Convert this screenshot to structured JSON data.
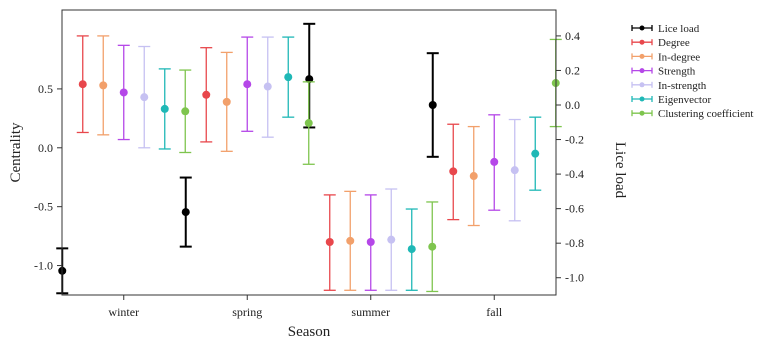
{
  "chart_data": {
    "type": "errorbar",
    "xlabel": "Season",
    "ylabel": "Centrality",
    "y2label": "Lice load",
    "categories": [
      "winter",
      "spring",
      "summer",
      "fall"
    ],
    "ylim": [
      -1.25,
      1.17
    ],
    "y2lim": [
      -1.1,
      0.55
    ],
    "yticks": [
      -1.0,
      -0.5,
      0.0,
      0.5
    ],
    "ytick_labels": [
      "-1.0",
      "-0.5",
      "0.0",
      "0.5"
    ],
    "y2ticks": [
      -1.0,
      -0.8,
      -0.6,
      -0.4,
      -0.2,
      0.0,
      0.2,
      0.4
    ],
    "y2tick_labels": [
      "-1.0",
      "-0.8",
      "-0.6",
      "-0.4",
      "-0.2",
      "0.0",
      "0.2",
      "0.4"
    ],
    "legend_position": "outside-right",
    "series": [
      {
        "name": "Lice load",
        "axis": "right",
        "color": "#000000",
        "mean": [
          -0.96,
          -0.62,
          0.15,
          0.0
        ],
        "lower": [
          -1.09,
          -0.82,
          -0.13,
          -0.3
        ],
        "upper": [
          -0.83,
          -0.42,
          0.47,
          0.3
        ]
      },
      {
        "name": "Degree",
        "axis": "left",
        "color": "#e8474c",
        "mean": [
          0.54,
          0.45,
          -0.8,
          -0.2
        ],
        "lower": [
          0.13,
          0.05,
          -1.21,
          -0.61
        ],
        "upper": [
          0.95,
          0.85,
          -0.4,
          0.2
        ]
      },
      {
        "name": "In-degree",
        "axis": "left",
        "color": "#f2a06b",
        "mean": [
          0.53,
          0.39,
          -0.79,
          -0.24
        ],
        "lower": [
          0.11,
          -0.03,
          -1.21,
          -0.66
        ],
        "upper": [
          0.95,
          0.81,
          -0.37,
          0.18
        ]
      },
      {
        "name": "Strength",
        "axis": "left",
        "color": "#b547e8",
        "mean": [
          0.47,
          0.54,
          -0.8,
          -0.12
        ],
        "lower": [
          0.07,
          0.14,
          -1.21,
          -0.53
        ],
        "upper": [
          0.87,
          0.94,
          -0.4,
          0.28
        ]
      },
      {
        "name": "In-strength",
        "axis": "left",
        "color": "#c6c1f2",
        "mean": [
          0.43,
          0.52,
          -0.78,
          -0.19
        ],
        "lower": [
          0.0,
          0.09,
          -1.21,
          -0.62
        ],
        "upper": [
          0.86,
          0.94,
          -0.35,
          0.24
        ]
      },
      {
        "name": "Eigenvector",
        "axis": "left",
        "color": "#1fb8b6",
        "mean": [
          0.33,
          0.6,
          -0.86,
          -0.05
        ],
        "lower": [
          -0.01,
          0.26,
          -1.21,
          -0.36
        ],
        "upper": [
          0.67,
          0.94,
          -0.52,
          0.26
        ]
      },
      {
        "name": "Clustering coefficient",
        "axis": "left",
        "color": "#7ec54e",
        "mean": [
          0.31,
          0.21,
          -0.84,
          0.55
        ],
        "lower": [
          -0.04,
          -0.14,
          -1.22,
          0.18
        ],
        "upper": [
          0.66,
          0.56,
          -0.46,
          0.92
        ]
      }
    ]
  }
}
